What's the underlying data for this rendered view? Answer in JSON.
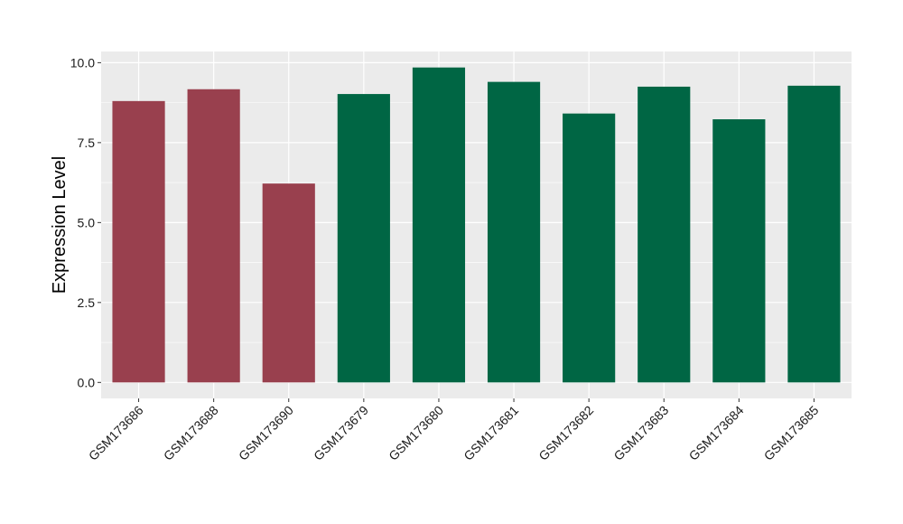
{
  "chart_data": {
    "type": "bar",
    "ylabel": "Expression Level",
    "xlabel": "",
    "ylim": [
      -0.5,
      10.35
    ],
    "yticks": [
      0.0,
      2.5,
      5.0,
      7.5,
      10.0
    ],
    "ytick_labels": [
      "0.0",
      "2.5",
      "5.0",
      "7.5",
      "10.0"
    ],
    "categories": [
      "GSM173686",
      "GSM173688",
      "GSM173690",
      "GSM173679",
      "GSM173680",
      "GSM173681",
      "GSM173682",
      "GSM173683",
      "GSM173684",
      "GSM173685"
    ],
    "values": [
      8.8,
      9.17,
      6.22,
      9.02,
      9.85,
      9.4,
      8.41,
      9.25,
      8.23,
      9.28
    ],
    "bar_colors": [
      "#99404e",
      "#99404e",
      "#99404e",
      "#006644",
      "#006644",
      "#006644",
      "#006644",
      "#006644",
      "#006644",
      "#006644"
    ],
    "panel_background": "#ebebeb",
    "grid": true,
    "grid_color": "#ffffff",
    "legend": "none"
  }
}
